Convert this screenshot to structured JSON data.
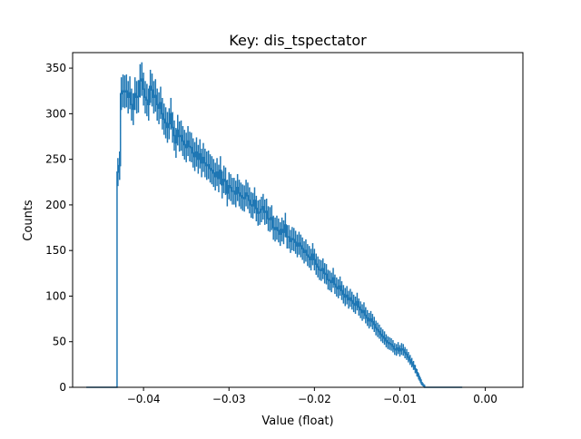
{
  "chart_data": {
    "type": "histogram",
    "title": "Key: dis_tspectator",
    "xlabel": "Value (float)",
    "ylabel": "Counts",
    "xlim": [
      -0.0483,
      0.0044
    ],
    "ylim": [
      0,
      367
    ],
    "x_ticks": [
      -0.04,
      -0.03,
      -0.02,
      -0.01,
      0.0
    ],
    "x_tick_labels": [
      "−0.04",
      "−0.03",
      "−0.02",
      "−0.01",
      "0.00"
    ],
    "y_ticks": [
      0,
      50,
      100,
      150,
      200,
      250,
      300,
      350
    ],
    "y_tick_labels": [
      "0",
      "50",
      "100",
      "150",
      "200",
      "250",
      "300",
      "350"
    ],
    "grid": false,
    "legend": "none",
    "series_color": "#1f77b4",
    "bins": {
      "x_start": -0.0467,
      "bin_width": 0.0002,
      "counts": [
        0,
        0,
        0,
        0,
        0,
        0,
        0,
        0,
        0,
        0,
        0,
        0,
        0,
        0,
        0,
        0,
        0,
        0,
        236,
        243,
        322,
        325,
        324,
        325,
        318,
        323,
        310,
        305,
        322,
        318,
        319,
        336,
        338,
        327,
        318,
        315,
        310,
        330,
        326,
        318,
        320,
        310,
        306,
        312,
        300,
        294,
        290,
        285,
        289,
        300,
        285,
        276,
        268,
        282,
        275,
        276,
        270,
        266,
        263,
        270,
        264,
        263,
        257,
        253,
        258,
        250,
        256,
        246,
        252,
        246,
        243,
        244,
        240,
        238,
        235,
        231,
        236,
        229,
        238,
        222,
        228,
        226,
        213,
        221,
        219,
        215,
        215,
        212,
        219,
        213,
        210,
        208,
        207,
        213,
        210,
        205,
        200,
        199,
        205,
        196,
        191,
        192,
        195,
        198,
        192,
        193,
        185,
        184,
        186,
        175,
        173,
        175,
        172,
        168,
        173,
        170,
        178,
        165,
        165,
        160,
        163,
        162,
        159,
        155,
        158,
        155,
        152,
        148,
        150,
        145,
        143,
        140,
        146,
        140,
        135,
        132,
        129,
        128,
        130,
        125,
        124,
        118,
        117,
        115,
        120,
        113,
        110,
        108,
        111,
        106,
        102,
        99,
        101,
        96,
        98,
        95,
        92,
        90,
        94,
        88,
        85,
        82,
        84,
        79,
        76,
        73,
        75,
        72,
        69,
        65,
        63,
        61,
        58,
        56,
        54,
        51,
        49,
        48,
        47,
        45,
        42,
        41,
        43,
        40,
        42,
        41,
        38,
        36,
        33,
        30,
        27,
        24,
        20,
        16,
        12,
        8,
        4,
        2,
        0,
        0,
        0,
        0,
        0,
        0,
        0,
        0,
        0,
        0,
        0,
        0,
        0,
        0,
        0,
        0,
        0,
        0,
        0,
        0,
        0,
        0
      ]
    }
  }
}
